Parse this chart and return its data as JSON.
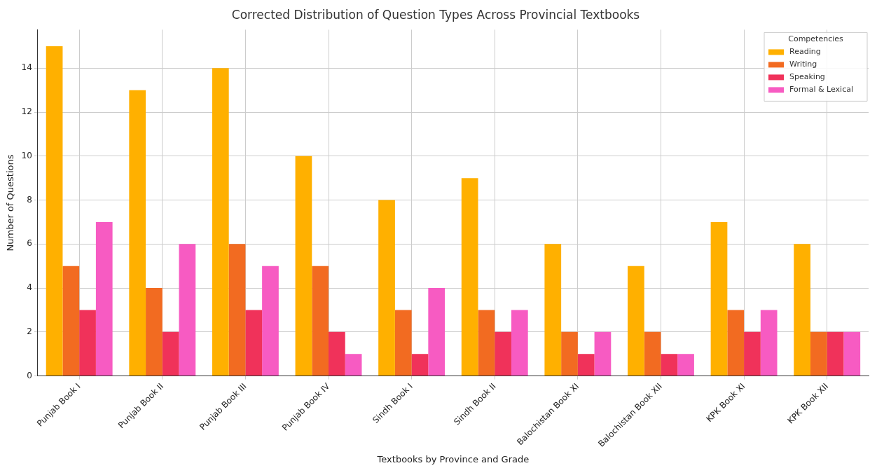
{
  "chart_data": {
    "type": "bar",
    "title": "Corrected Distribution of Question Types Across Provincial Textbooks",
    "xlabel": "Textbooks by Province and Grade",
    "ylabel": "Number of Questions",
    "legend_title": "Competencies",
    "legend": "top right",
    "grid": true,
    "categories": [
      "Punjab Book I",
      "Punjab Book II",
      "Punjab Book III",
      "Punjab Book IV",
      "Sindh Book I",
      "Sindh Book II",
      "Balochistan Book XI",
      "Balochistan Book XII",
      "KPK Book XI",
      "KPK Book XII"
    ],
    "ylim": [
      0,
      15.75
    ],
    "yticks": [
      0,
      2,
      4,
      6,
      8,
      10,
      12,
      14
    ],
    "series": [
      {
        "name": "Reading",
        "color": "#ffb000",
        "values": [
          15,
          13,
          14,
          10,
          8,
          9,
          6,
          5,
          7,
          6
        ]
      },
      {
        "name": "Writing",
        "color": "#f26b21",
        "values": [
          5,
          4,
          6,
          5,
          3,
          3,
          2,
          2,
          3,
          2
        ]
      },
      {
        "name": "Speaking",
        "color": "#f0325a",
        "values": [
          3,
          2,
          3,
          2,
          1,
          2,
          1,
          1,
          2,
          2
        ]
      },
      {
        "name": "Formal & Lexical",
        "color": "#f75bc2",
        "values": [
          7,
          6,
          5,
          1,
          4,
          3,
          2,
          1,
          3,
          2
        ]
      }
    ]
  }
}
